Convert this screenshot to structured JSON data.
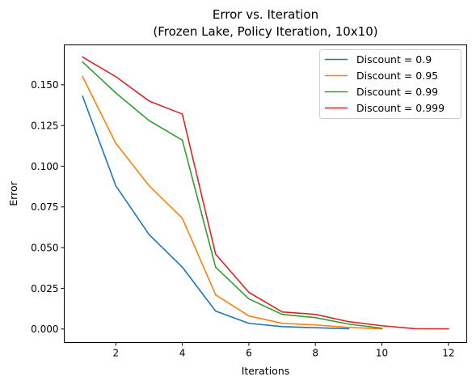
{
  "chart_data": {
    "type": "line",
    "title_line1": "Error vs. Iteration",
    "title_line2": "(Frozen Lake, Policy Iteration, 10x10)",
    "xlabel": "Iterations",
    "ylabel": "Error",
    "xlim": [
      0.45,
      12.55
    ],
    "ylim": [
      -0.0083,
      0.1745
    ],
    "xticks": [
      2,
      4,
      6,
      8,
      10,
      12
    ],
    "yticks": [
      0.0,
      0.025,
      0.05,
      0.075,
      0.1,
      0.125,
      0.15
    ],
    "ytick_labels": [
      "0.000",
      "0.025",
      "0.050",
      "0.075",
      "0.100",
      "0.125",
      "0.150"
    ],
    "grid": false,
    "legend_position": "top-right",
    "series": [
      {
        "name": "Discount = 0.9",
        "color": "#1f77b4",
        "x": [
          1,
          2,
          3,
          4,
          5,
          6,
          7,
          8,
          9
        ],
        "y": [
          0.143,
          0.088,
          0.058,
          0.038,
          0.011,
          0.0035,
          0.0015,
          0.0008,
          0.0002
        ]
      },
      {
        "name": "Discount = 0.95",
        "color": "#ff7f0e",
        "x": [
          1,
          2,
          3,
          4,
          5,
          6,
          7,
          8,
          9,
          10
        ],
        "y": [
          0.155,
          0.114,
          0.088,
          0.068,
          0.021,
          0.008,
          0.0035,
          0.0025,
          0.001,
          0.0001
        ]
      },
      {
        "name": "Discount = 0.99",
        "color": "#2ca02c",
        "x": [
          1,
          2,
          3,
          4,
          5,
          6,
          7,
          8,
          9,
          10
        ],
        "y": [
          0.164,
          0.145,
          0.128,
          0.116,
          0.038,
          0.0185,
          0.009,
          0.007,
          0.003,
          0.0005
        ]
      },
      {
        "name": "Discount = 0.999",
        "color": "#d62728",
        "x": [
          1,
          2,
          3,
          4,
          5,
          6,
          7,
          8,
          9,
          10,
          11,
          12
        ],
        "y": [
          0.167,
          0.155,
          0.14,
          0.132,
          0.046,
          0.0225,
          0.0105,
          0.009,
          0.0045,
          0.002,
          0.0002,
          0.0001
        ]
      }
    ]
  }
}
